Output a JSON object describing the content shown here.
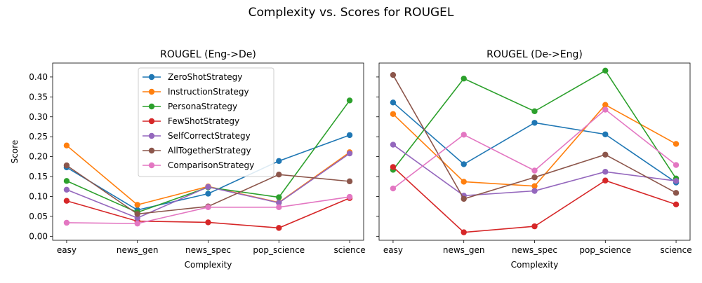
{
  "figure": {
    "suptitle": "Complexity vs. Scores for ROUGEL"
  },
  "chart_data": [
    {
      "type": "line",
      "title": "ROUGEL (Eng->De)",
      "xlabel": "Complexity",
      "ylabel": "Score",
      "categories": [
        "easy",
        "news_gen",
        "news_spec",
        "pop_science",
        "science"
      ],
      "ylim": [
        -0.01,
        0.435
      ],
      "yticks": [
        "0.00",
        "0.05",
        "0.10",
        "0.15",
        "0.20",
        "0.25",
        "0.30",
        "0.35",
        "0.40"
      ],
      "legend": "upper-center",
      "series": [
        {
          "name": "ZeroShotStrategy",
          "color": "#1f77b4",
          "values": [
            0.173,
            0.066,
            0.107,
            0.189,
            0.254
          ]
        },
        {
          "name": "InstructionStrategy",
          "color": "#ff7f0e",
          "values": [
            0.228,
            0.079,
            0.125,
            0.085,
            0.211
          ]
        },
        {
          "name": "PersonaStrategy",
          "color": "#2ca02c",
          "values": [
            0.139,
            0.06,
            0.123,
            0.098,
            0.341
          ]
        },
        {
          "name": "FewShotStrategy",
          "color": "#d62728",
          "values": [
            0.089,
            0.038,
            0.035,
            0.021,
            0.096
          ]
        },
        {
          "name": "SelfCorrectStrategy",
          "color": "#9467bd",
          "values": [
            0.117,
            0.046,
            0.124,
            0.084,
            0.208
          ]
        },
        {
          "name": "AllTogetherStrategy",
          "color": "#8c564b",
          "values": [
            0.178,
            0.056,
            0.075,
            0.155,
            0.138
          ]
        },
        {
          "name": "ComparisonStrategy",
          "color": "#e377c2",
          "values": [
            0.034,
            0.032,
            0.073,
            0.073,
            0.099
          ]
        }
      ]
    },
    {
      "type": "line",
      "title": "ROUGEL (De->Eng)",
      "xlabel": "Complexity",
      "ylabel": "",
      "categories": [
        "easy",
        "news_gen",
        "news_spec",
        "pop_science",
        "science"
      ],
      "ylim": [
        -0.01,
        0.435
      ],
      "series": [
        {
          "name": "ZeroShotStrategy",
          "color": "#1f77b4",
          "values": [
            0.336,
            0.181,
            0.285,
            0.256,
            0.135
          ]
        },
        {
          "name": "InstructionStrategy",
          "color": "#ff7f0e",
          "values": [
            0.307,
            0.137,
            0.126,
            0.33,
            0.232
          ]
        },
        {
          "name": "PersonaStrategy",
          "color": "#2ca02c",
          "values": [
            0.167,
            0.396,
            0.314,
            0.416,
            0.145
          ]
        },
        {
          "name": "FewShotStrategy",
          "color": "#d62728",
          "values": [
            0.174,
            0.01,
            0.025,
            0.14,
            0.08
          ]
        },
        {
          "name": "SelfCorrectStrategy",
          "color": "#9467bd",
          "values": [
            0.23,
            0.102,
            0.114,
            0.162,
            0.139
          ]
        },
        {
          "name": "AllTogetherStrategy",
          "color": "#8c564b",
          "values": [
            0.405,
            0.094,
            0.148,
            0.205,
            0.109
          ]
        },
        {
          "name": "ComparisonStrategy",
          "color": "#e377c2",
          "values": [
            0.12,
            0.255,
            0.165,
            0.318,
            0.179
          ]
        }
      ]
    }
  ]
}
